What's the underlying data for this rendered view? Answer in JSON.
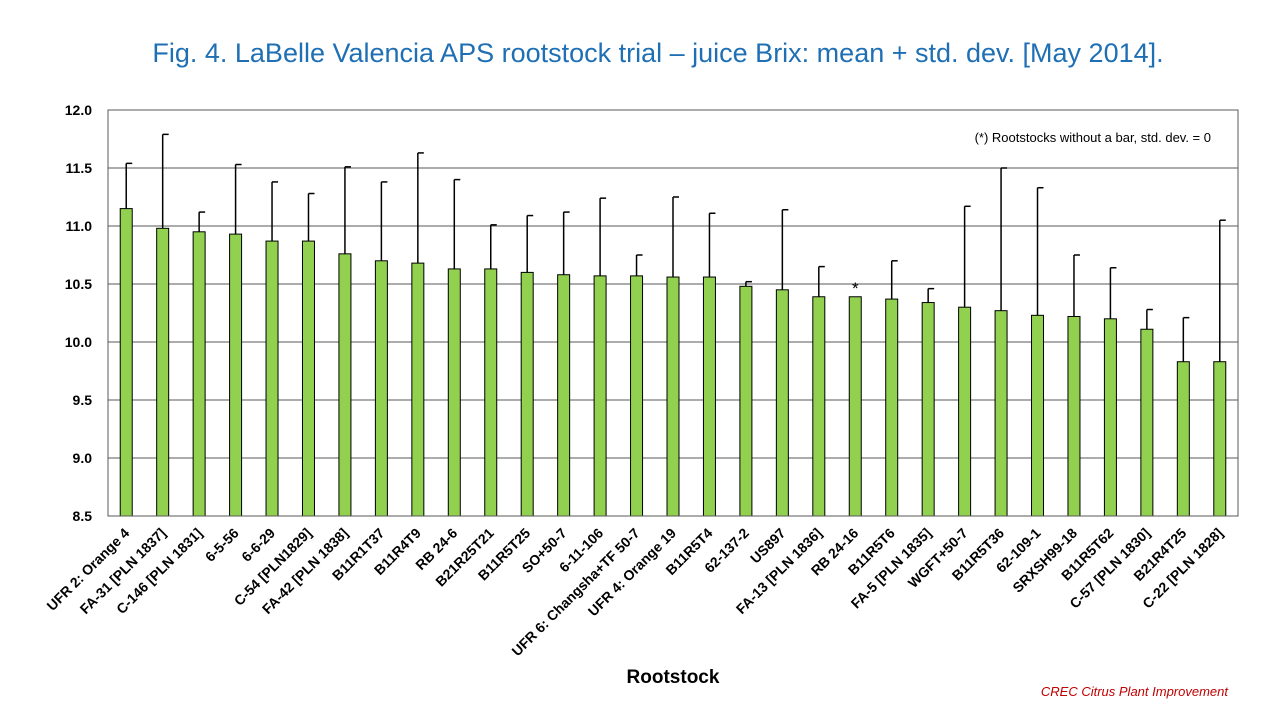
{
  "chart_data": {
    "type": "bar",
    "title": "Fig. 4. LaBelle Valencia APS rootstock trial – juice Brix: mean + std. dev. [May 2014].",
    "xlabel": "Rootstock",
    "ylabel": "",
    "ylim": [
      8.5,
      12.0
    ],
    "yticks": [
      "8.5",
      "9.0",
      "9.5",
      "10.0",
      "10.5",
      "11.0",
      "11.5",
      "12.0"
    ],
    "grid": true,
    "bar_color": "#92d050",
    "annotation": "(*) Rootstocks without  a bar, std. dev. = 0",
    "star_mark": "*",
    "categories": [
      "UFR 2: Orange 4",
      "FA-31 [PLN 1837]",
      "C-146 [PLN 1831]",
      "6-5-56",
      "6-6-29",
      "C-54 [PLN1829]",
      "FA-42 [PLN 1838]",
      "B11R1T37",
      "B11R4T9",
      "RB 24-6",
      "B21R25T21",
      "B11R5T25",
      "SO+50-7",
      "6-11-106",
      "UFR 6: Changsha+TF 50-7",
      "UFR 4: Orange 19",
      "B11R5T4",
      "62-137-2",
      "US897",
      "FA-13 [PLN 1836]",
      "RB 24-16",
      "B11R5T6",
      "FA-5 [PLN 1835]",
      "WGFT+50-7",
      "B11R5T36",
      "62-109-1",
      "SRXSH99-18",
      "B11R5T62",
      "C-57 [PLN 1830]",
      "B21R4T25",
      "C-22 [PLN 1828]"
    ],
    "values": [
      11.15,
      10.98,
      10.95,
      10.93,
      10.87,
      10.87,
      10.76,
      10.7,
      10.68,
      10.63,
      10.63,
      10.6,
      10.58,
      10.57,
      10.57,
      10.56,
      10.56,
      10.48,
      10.45,
      10.39,
      10.39,
      10.37,
      10.34,
      10.3,
      10.27,
      10.23,
      10.22,
      10.2,
      10.11,
      9.83,
      9.83
    ],
    "error": [
      0.39,
      0.81,
      0.17,
      0.6,
      0.51,
      0.41,
      0.75,
      0.68,
      0.95,
      0.77,
      0.38,
      0.49,
      0.54,
      0.67,
      0.18,
      0.69,
      0.55,
      0.04,
      0.69,
      0.26,
      0.0,
      0.33,
      0.12,
      0.87,
      1.23,
      1.1,
      0.53,
      0.44,
      0.17,
      0.38,
      1.22
    ],
    "star_index": 20
  },
  "footer": "CREC Citrus Plant Improvement"
}
